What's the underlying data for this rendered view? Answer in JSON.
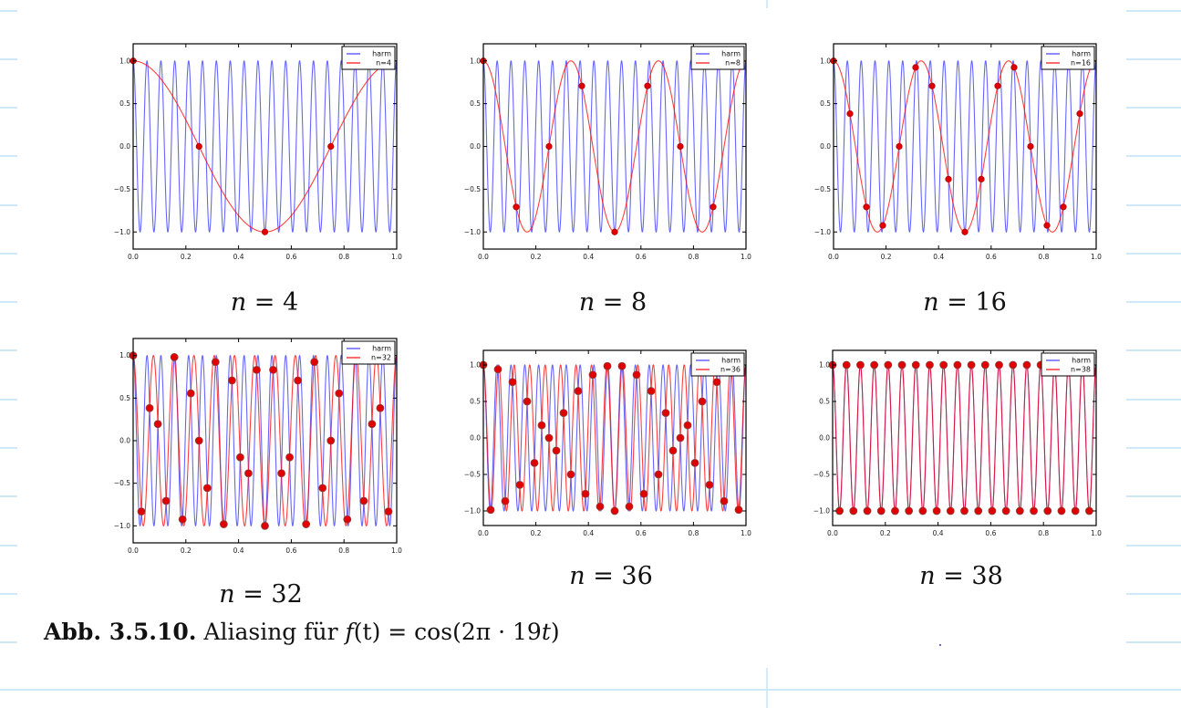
{
  "figure": {
    "caption_label": "Abb.  3.5.10.",
    "caption_text": "Aliasing für",
    "caption_math_f": "f",
    "caption_math_t": "(t)",
    "caption_math_rest": " = cos(2π · 19",
    "caption_math_t2": "t",
    "caption_math_close": ")"
  },
  "chart_data": [
    {
      "type": "line",
      "title": "",
      "subcaption": {
        "var": "n",
        "eq": " = 4"
      },
      "signal_frequency": 19,
      "samples_n": 4,
      "alias_frequency": 1,
      "series": [
        {
          "name": "harm",
          "color": "#0000ff",
          "function": "cos(2*pi*19*t)"
        },
        {
          "name": "n=4",
          "color": "#ff0000",
          "function": "cos(2*pi*1*t)",
          "samples": [
            1.0,
            0.0,
            -1.0,
            0.0
          ]
        }
      ],
      "xlim": [
        0.0,
        1.0
      ],
      "ylim": [
        -1.2,
        1.2
      ],
      "xticks": [
        "0.0",
        "0.2",
        "0.4",
        "0.6",
        "0.8",
        "1.0"
      ],
      "yticks": [
        "−1.0",
        "−0.5",
        "0.0",
        "0.5",
        "1.0"
      ],
      "legend": "top-right",
      "grid": false
    },
    {
      "type": "line",
      "subcaption": {
        "var": "n",
        "eq": " = 8"
      },
      "signal_frequency": 19,
      "samples_n": 8,
      "alias_frequency": 3,
      "series": [
        {
          "name": "harm",
          "color": "#0000ff",
          "function": "cos(2*pi*19*t)"
        },
        {
          "name": "n=8",
          "color": "#ff0000",
          "function": "cos(2*pi*3*t)",
          "samples": [
            1.0,
            -0.707,
            0.0,
            0.707,
            -1.0,
            0.707,
            0.0,
            -0.707
          ]
        }
      ],
      "xlim": [
        0.0,
        1.0
      ],
      "ylim": [
        -1.2,
        1.2
      ],
      "xticks": [
        "0.0",
        "0.2",
        "0.4",
        "0.6",
        "0.8",
        "1.0"
      ],
      "yticks": [
        "−1.0",
        "−0.5",
        "0.0",
        "0.5",
        "1.0"
      ],
      "legend": "top-right",
      "grid": false
    },
    {
      "type": "line",
      "subcaption": {
        "var": "n",
        "eq": " = 16"
      },
      "signal_frequency": 19,
      "samples_n": 16,
      "alias_frequency": 3,
      "series": [
        {
          "name": "harm",
          "color": "#0000ff",
          "function": "cos(2*pi*19*t)"
        },
        {
          "name": "n=16",
          "color": "#ff0000",
          "function": "cos(2*pi*3*t)"
        }
      ],
      "xlim": [
        0.0,
        1.0
      ],
      "ylim": [
        -1.2,
        1.2
      ],
      "xticks": [
        "0.0",
        "0.2",
        "0.4",
        "0.6",
        "0.8",
        "1.0"
      ],
      "yticks": [
        "−1.0",
        "−0.5",
        "0.0",
        "0.5",
        "1.0"
      ],
      "legend": "top-right",
      "grid": false
    },
    {
      "type": "line",
      "subcaption": {
        "var": "n",
        "eq": " = 32"
      },
      "signal_frequency": 19,
      "samples_n": 32,
      "alias_frequency": 13,
      "series": [
        {
          "name": "harm",
          "color": "#0000ff",
          "function": "cos(2*pi*19*t)"
        },
        {
          "name": "n=32",
          "color": "#ff0000",
          "function": "cos(2*pi*13*t)"
        }
      ],
      "xlim": [
        0.0,
        1.0
      ],
      "ylim": [
        -1.2,
        1.2
      ],
      "xticks": [
        "0.0",
        "0.2",
        "0.4",
        "0.6",
        "0.8",
        "1.0"
      ],
      "yticks": [
        "−1.0",
        "−0.5",
        "0.0",
        "0.5",
        "1.0"
      ],
      "legend": "top-right",
      "grid": false
    },
    {
      "type": "line",
      "subcaption": {
        "var": "n",
        "eq": " = 36"
      },
      "signal_frequency": 19,
      "samples_n": 36,
      "alias_frequency": 17,
      "series": [
        {
          "name": "harm",
          "color": "#0000ff",
          "function": "cos(2*pi*19*t)"
        },
        {
          "name": "n=36",
          "color": "#ff0000",
          "function": "cos(2*pi*17*t)"
        }
      ],
      "xlim": [
        0.0,
        1.0
      ],
      "ylim": [
        -1.2,
        1.2
      ],
      "xticks": [
        "0.0",
        "0.2",
        "0.4",
        "0.6",
        "0.8",
        "1.0"
      ],
      "yticks": [
        "−1.0",
        "−0.5",
        "0.0",
        "0.5",
        "1.0"
      ],
      "legend": "top-right",
      "grid": false
    },
    {
      "type": "line",
      "subcaption": {
        "var": "n",
        "eq": " = 38"
      },
      "signal_frequency": 19,
      "samples_n": 38,
      "alias_frequency": 19,
      "series": [
        {
          "name": "harm",
          "color": "#0000ff",
          "function": "cos(2*pi*19*t)"
        },
        {
          "name": "n=38",
          "color": "#ff0000",
          "function": "cos(2*pi*19*t)"
        }
      ],
      "xlim": [
        0.0,
        1.0
      ],
      "ylim": [
        -1.2,
        1.2
      ],
      "xticks": [
        "0.0",
        "0.2",
        "0.4",
        "0.6",
        "0.8",
        "1.0"
      ],
      "yticks": [
        "−1.0",
        "−0.5",
        "0.0",
        "0.5",
        "1.0"
      ],
      "legend": "top-right",
      "grid": false
    }
  ]
}
